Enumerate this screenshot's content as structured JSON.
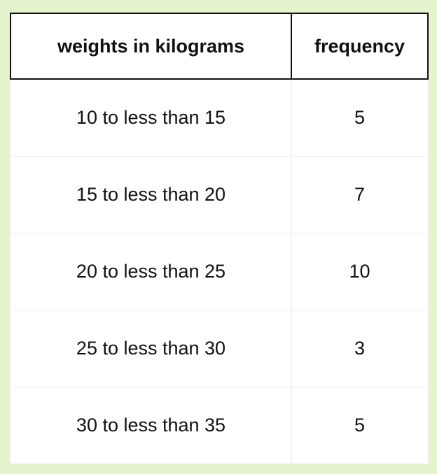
{
  "table": {
    "headers": [
      "weights in kilograms",
      "frequency"
    ],
    "rows": [
      [
        "10 to less than 15",
        "5"
      ],
      [
        "15 to less than 20",
        "7"
      ],
      [
        "20 to less than 25",
        "10"
      ],
      [
        "25 to less than 30",
        "3"
      ],
      [
        "30 to less than 35",
        "5"
      ]
    ]
  }
}
